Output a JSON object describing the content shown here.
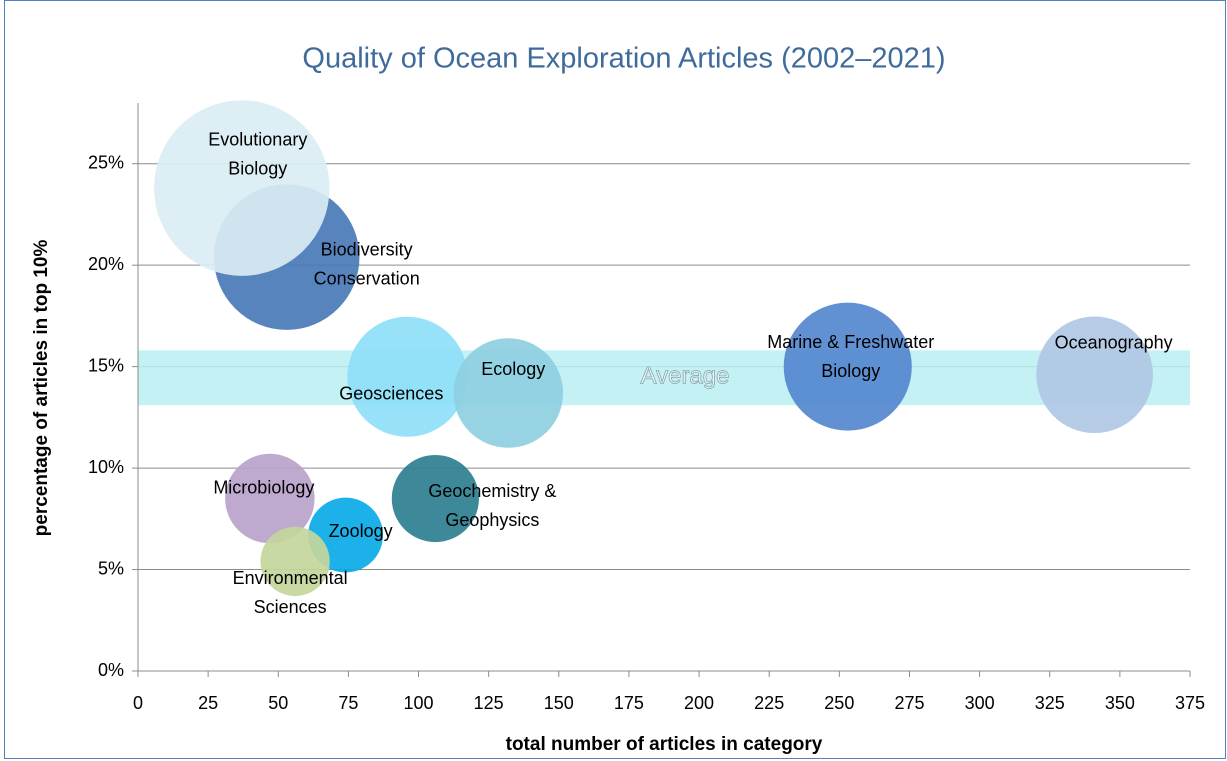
{
  "chart_data": {
    "type": "bubble",
    "title": "Quality of Ocean Exploration Articles (2002–2021)",
    "x_label": "total number of articles in category",
    "y_label": "percentage of articles in top 10%",
    "labels": [
      "Biodiversity Conservation",
      "Evolutionary Biology",
      "Geosciences",
      "Ecology",
      "Marine & Freshwater Biology",
      "Oceanography",
      "Geochemistry & Geophysics",
      "Microbiology",
      "Zoology",
      "Environmental Sciences"
    ],
    "x": [
      53,
      37,
      96,
      132,
      253,
      341,
      106,
      47,
      74,
      56
    ],
    "values": [
      20.4,
      23.8,
      14.5,
      13.7,
      15.0,
      14.6,
      8.5,
      8.5,
      6.7,
      5.4
    ],
    "sizes": [
      53,
      77,
      36,
      30,
      41,
      34,
      19,
      20,
      14,
      12
    ],
    "colors": [
      "#4a7ab8",
      "#daedf4",
      "#8ee0f8",
      "#8ecfdf",
      "#5588cf",
      "#b0c8e4",
      "#2e7f90",
      "#b8a3cb",
      "#0aaae8",
      "#c4d69c"
    ],
    "average_band": {
      "label": "Average",
      "range": [
        13.1,
        15.8
      ],
      "color": "#b9eef2"
    },
    "xlim": [
      0,
      375
    ],
    "ylim": [
      0,
      27.5
    ],
    "xticks": [
      0,
      25,
      50,
      75,
      100,
      125,
      150,
      175,
      200,
      225,
      250,
      275,
      300,
      325,
      350,
      375
    ],
    "yticks": [
      {
        "value": 0,
        "label": "0%"
      },
      {
        "value": 5,
        "label": "5%"
      },
      {
        "value": 10,
        "label": "10%"
      },
      {
        "value": 15,
        "label": "15%"
      },
      {
        "value": 20,
        "label": "20%"
      },
      {
        "value": 25,
        "label": "25%"
      }
    ],
    "grid": true
  }
}
